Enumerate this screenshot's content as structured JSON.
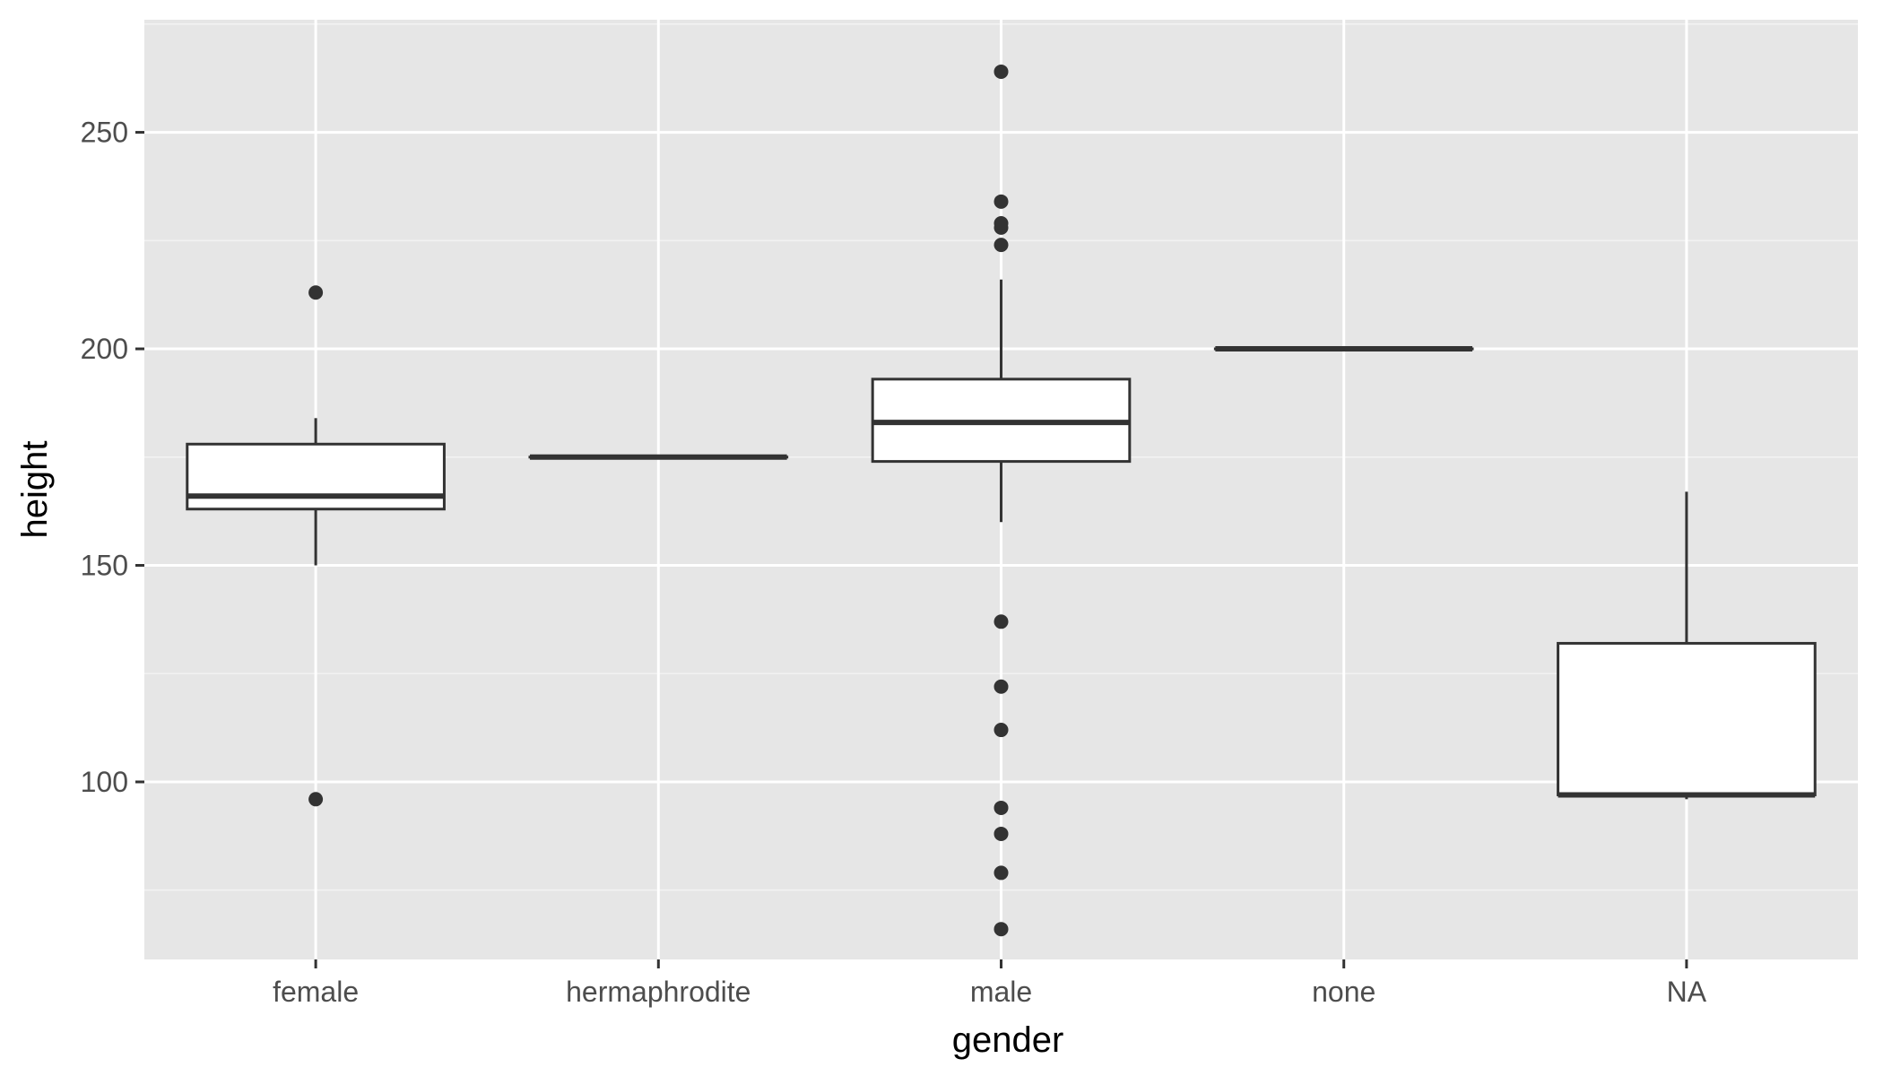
{
  "chart_data": {
    "type": "boxplot",
    "title": "",
    "xlabel": "gender",
    "ylabel": "height",
    "categories": [
      "female",
      "hermaphrodite",
      "male",
      "none",
      "NA"
    ],
    "ylim": [
      59,
      276
    ],
    "yticks": [
      100,
      150,
      200,
      250
    ],
    "grid": true,
    "boxes": [
      {
        "category": "female",
        "lower_whisker": 150,
        "q1": 163,
        "median": 166,
        "q3": 178,
        "upper_whisker": 184,
        "outliers": [
          96,
          213
        ]
      },
      {
        "category": "hermaphrodite",
        "lower_whisker": 175,
        "q1": 175,
        "median": 175,
        "q3": 175,
        "upper_whisker": 175,
        "outliers": []
      },
      {
        "category": "male",
        "lower_whisker": 160,
        "q1": 174,
        "median": 183,
        "q3": 193,
        "upper_whisker": 216,
        "outliers": [
          66,
          79,
          88,
          94,
          112,
          122,
          137,
          224,
          228,
          229,
          234,
          264
        ]
      },
      {
        "category": "none",
        "lower_whisker": 200,
        "q1": 200,
        "median": 200,
        "q3": 200,
        "upper_whisker": 200,
        "outliers": []
      },
      {
        "category": "NA",
        "lower_whisker": 96,
        "q1": 97,
        "median": 97,
        "q3": 132,
        "upper_whisker": 167,
        "outliers": []
      }
    ]
  }
}
